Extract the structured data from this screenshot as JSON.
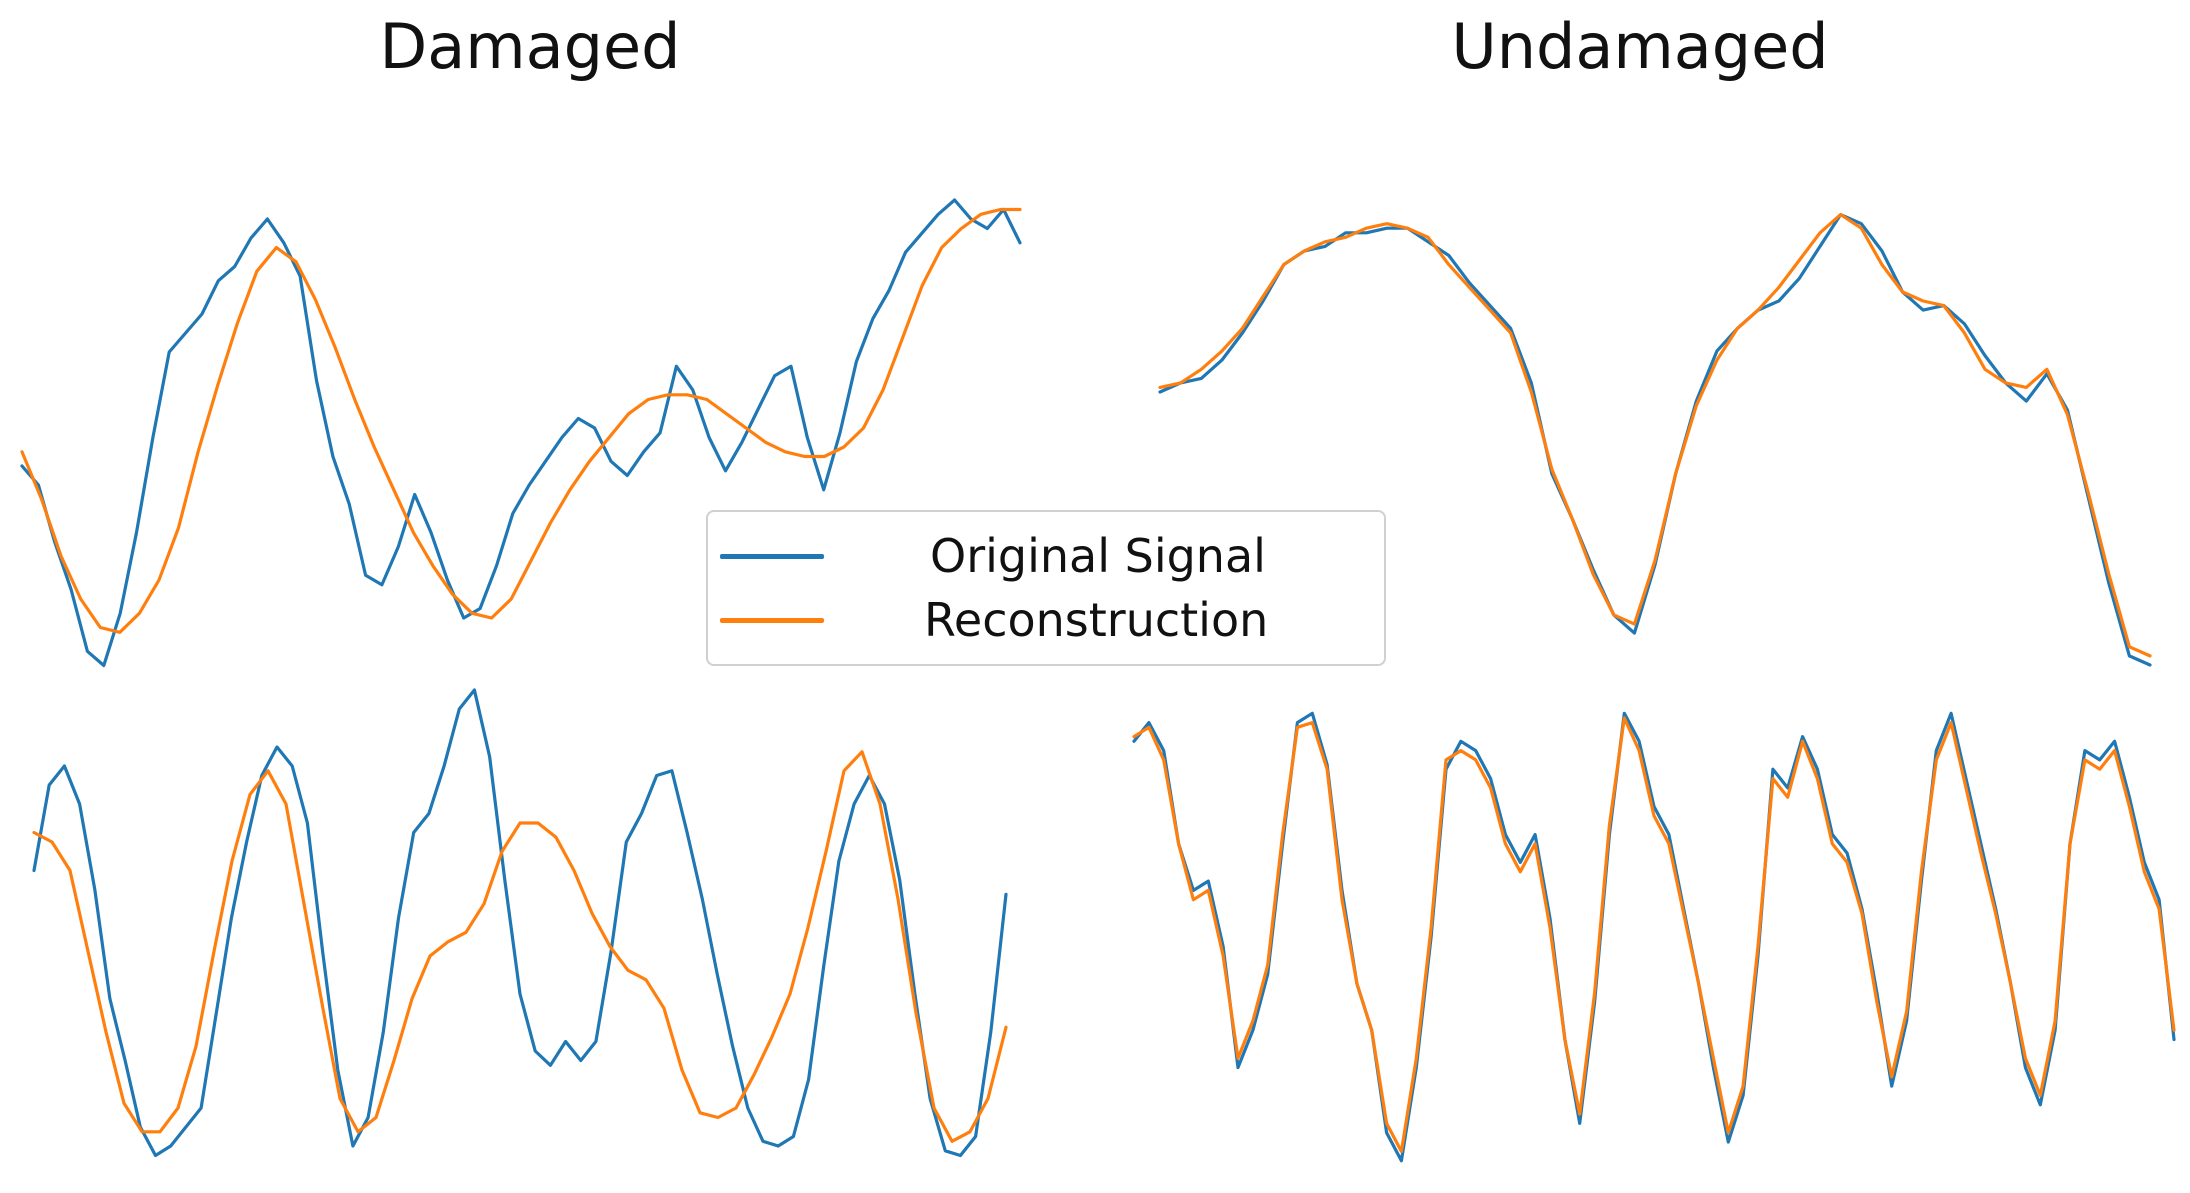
{
  "titles": {
    "left": "Damaged",
    "right": "Undamaged"
  },
  "legend": {
    "items": [
      {
        "label": "Original Signal",
        "color": "#1f77b4"
      },
      {
        "label": "Reconstruction",
        "color": "#ff7f0e"
      }
    ]
  },
  "chart_data": [
    {
      "type": "line",
      "panel": "damaged-top",
      "title": "Damaged",
      "series": [
        {
          "name": "Original Signal",
          "color": "#1f77b4",
          "values": [
            0.44,
            0.4,
            0.28,
            0.18,
            0.05,
            0.02,
            0.13,
            0.3,
            0.5,
            0.68,
            0.72,
            0.76,
            0.83,
            0.86,
            0.92,
            0.96,
            0.91,
            0.84,
            0.62,
            0.46,
            0.36,
            0.21,
            0.19,
            0.27,
            0.38,
            0.3,
            0.2,
            0.12,
            0.14,
            0.23,
            0.34,
            0.4,
            0.45,
            0.5,
            0.54,
            0.52,
            0.45,
            0.42,
            0.47,
            0.51,
            0.65,
            0.6,
            0.5,
            0.43,
            0.49,
            0.56,
            0.63,
            0.65,
            0.5,
            0.39,
            0.51,
            0.66,
            0.75,
            0.81,
            0.89,
            0.93,
            0.97,
            1.0,
            0.96,
            0.94,
            0.98,
            0.91
          ]
        },
        {
          "name": "Reconstruction",
          "color": "#ff7f0e",
          "values": [
            0.47,
            0.37,
            0.25,
            0.16,
            0.1,
            0.09,
            0.13,
            0.2,
            0.31,
            0.47,
            0.61,
            0.74,
            0.85,
            0.9,
            0.87,
            0.79,
            0.69,
            0.58,
            0.48,
            0.39,
            0.3,
            0.23,
            0.17,
            0.13,
            0.12,
            0.16,
            0.24,
            0.32,
            0.39,
            0.45,
            0.5,
            0.55,
            0.58,
            0.59,
            0.59,
            0.58,
            0.55,
            0.52,
            0.49,
            0.47,
            0.46,
            0.46,
            0.48,
            0.52,
            0.6,
            0.71,
            0.82,
            0.9,
            0.94,
            0.97,
            0.98,
            0.98
          ]
        }
      ]
    },
    {
      "type": "line",
      "panel": "undamaged-top",
      "title": "Undamaged",
      "series": [
        {
          "name": "Original Signal",
          "color": "#1f77b4",
          "values": [
            0.6,
            0.62,
            0.63,
            0.67,
            0.73,
            0.8,
            0.88,
            0.91,
            0.92,
            0.95,
            0.95,
            0.96,
            0.96,
            0.93,
            0.9,
            0.84,
            0.79,
            0.74,
            0.62,
            0.42,
            0.32,
            0.21,
            0.11,
            0.07,
            0.22,
            0.42,
            0.58,
            0.69,
            0.74,
            0.78,
            0.8,
            0.85,
            0.92,
            0.99,
            0.97,
            0.91,
            0.82,
            0.78,
            0.79,
            0.75,
            0.68,
            0.62,
            0.58,
            0.64,
            0.56,
            0.37,
            0.18,
            0.02,
            0.0
          ]
        },
        {
          "name": "Reconstruction",
          "color": "#ff7f0e",
          "values": [
            0.61,
            0.62,
            0.65,
            0.69,
            0.74,
            0.81,
            0.88,
            0.91,
            0.93,
            0.94,
            0.96,
            0.97,
            0.96,
            0.94,
            0.88,
            0.83,
            0.78,
            0.73,
            0.6,
            0.43,
            0.32,
            0.2,
            0.11,
            0.09,
            0.23,
            0.42,
            0.57,
            0.67,
            0.74,
            0.78,
            0.83,
            0.89,
            0.95,
            0.99,
            0.96,
            0.88,
            0.82,
            0.8,
            0.79,
            0.73,
            0.65,
            0.62,
            0.61,
            0.65,
            0.55,
            0.38,
            0.2,
            0.04,
            0.02
          ]
        }
      ]
    },
    {
      "type": "line",
      "panel": "damaged-bottom",
      "series": [
        {
          "name": "Original Signal",
          "color": "#1f77b4",
          "values": [
            0.62,
            0.8,
            0.84,
            0.76,
            0.58,
            0.35,
            0.22,
            0.08,
            0.02,
            0.04,
            0.08,
            0.12,
            0.32,
            0.52,
            0.68,
            0.82,
            0.88,
            0.84,
            0.72,
            0.45,
            0.2,
            0.04,
            0.1,
            0.28,
            0.52,
            0.7,
            0.74,
            0.84,
            0.96,
            1.0,
            0.86,
            0.6,
            0.36,
            0.24,
            0.21,
            0.26,
            0.22,
            0.26,
            0.45,
            0.68,
            0.74,
            0.82,
            0.83,
            0.7,
            0.56,
            0.4,
            0.25,
            0.12,
            0.05,
            0.04,
            0.06,
            0.18,
            0.42,
            0.64,
            0.76,
            0.82,
            0.76,
            0.6,
            0.36,
            0.14,
            0.03,
            0.02,
            0.06,
            0.28,
            0.57
          ]
        },
        {
          "name": "Reconstruction",
          "color": "#ff7f0e",
          "values": [
            0.7,
            0.68,
            0.62,
            0.45,
            0.28,
            0.13,
            0.07,
            0.07,
            0.12,
            0.25,
            0.45,
            0.64,
            0.78,
            0.83,
            0.76,
            0.55,
            0.34,
            0.14,
            0.07,
            0.1,
            0.22,
            0.35,
            0.44,
            0.47,
            0.49,
            0.55,
            0.66,
            0.72,
            0.72,
            0.69,
            0.62,
            0.53,
            0.46,
            0.41,
            0.39,
            0.33,
            0.2,
            0.11,
            0.1,
            0.12,
            0.19,
            0.27,
            0.36,
            0.5,
            0.66,
            0.83,
            0.87,
            0.76,
            0.56,
            0.32,
            0.12,
            0.05,
            0.07,
            0.14,
            0.29
          ]
        }
      ]
    },
    {
      "type": "line",
      "panel": "undamaged-bottom",
      "series": [
        {
          "name": "Original Signal",
          "color": "#1f77b4",
          "values": [
            0.92,
            0.96,
            0.9,
            0.7,
            0.6,
            0.62,
            0.48,
            0.22,
            0.3,
            0.42,
            0.7,
            0.96,
            0.98,
            0.87,
            0.6,
            0.4,
            0.3,
            0.08,
            0.02,
            0.22,
            0.5,
            0.86,
            0.92,
            0.9,
            0.84,
            0.72,
            0.66,
            0.72,
            0.54,
            0.28,
            0.1,
            0.36,
            0.72,
            0.98,
            0.92,
            0.78,
            0.72,
            0.56,
            0.4,
            0.22,
            0.06,
            0.16,
            0.46,
            0.86,
            0.82,
            0.93,
            0.86,
            0.72,
            0.68,
            0.56,
            0.38,
            0.18,
            0.32,
            0.62,
            0.9,
            0.98,
            0.84,
            0.7,
            0.56,
            0.4,
            0.22,
            0.14,
            0.3,
            0.7,
            0.9,
            0.88,
            0.92,
            0.8,
            0.66,
            0.58,
            0.28
          ]
        },
        {
          "name": "Reconstruction",
          "color": "#ff7f0e",
          "values": [
            0.93,
            0.95,
            0.88,
            0.7,
            0.58,
            0.6,
            0.46,
            0.24,
            0.32,
            0.44,
            0.72,
            0.95,
            0.96,
            0.86,
            0.58,
            0.4,
            0.3,
            0.1,
            0.04,
            0.24,
            0.52,
            0.88,
            0.9,
            0.88,
            0.82,
            0.7,
            0.64,
            0.7,
            0.52,
            0.28,
            0.12,
            0.38,
            0.74,
            0.97,
            0.9,
            0.76,
            0.7,
            0.55,
            0.4,
            0.24,
            0.08,
            0.18,
            0.48,
            0.84,
            0.8,
            0.92,
            0.84,
            0.7,
            0.66,
            0.55,
            0.36,
            0.2,
            0.34,
            0.64,
            0.88,
            0.96,
            0.82,
            0.68,
            0.55,
            0.4,
            0.24,
            0.16,
            0.32,
            0.7,
            0.88,
            0.86,
            0.9,
            0.78,
            0.64,
            0.56,
            0.3
          ]
        }
      ]
    }
  ]
}
